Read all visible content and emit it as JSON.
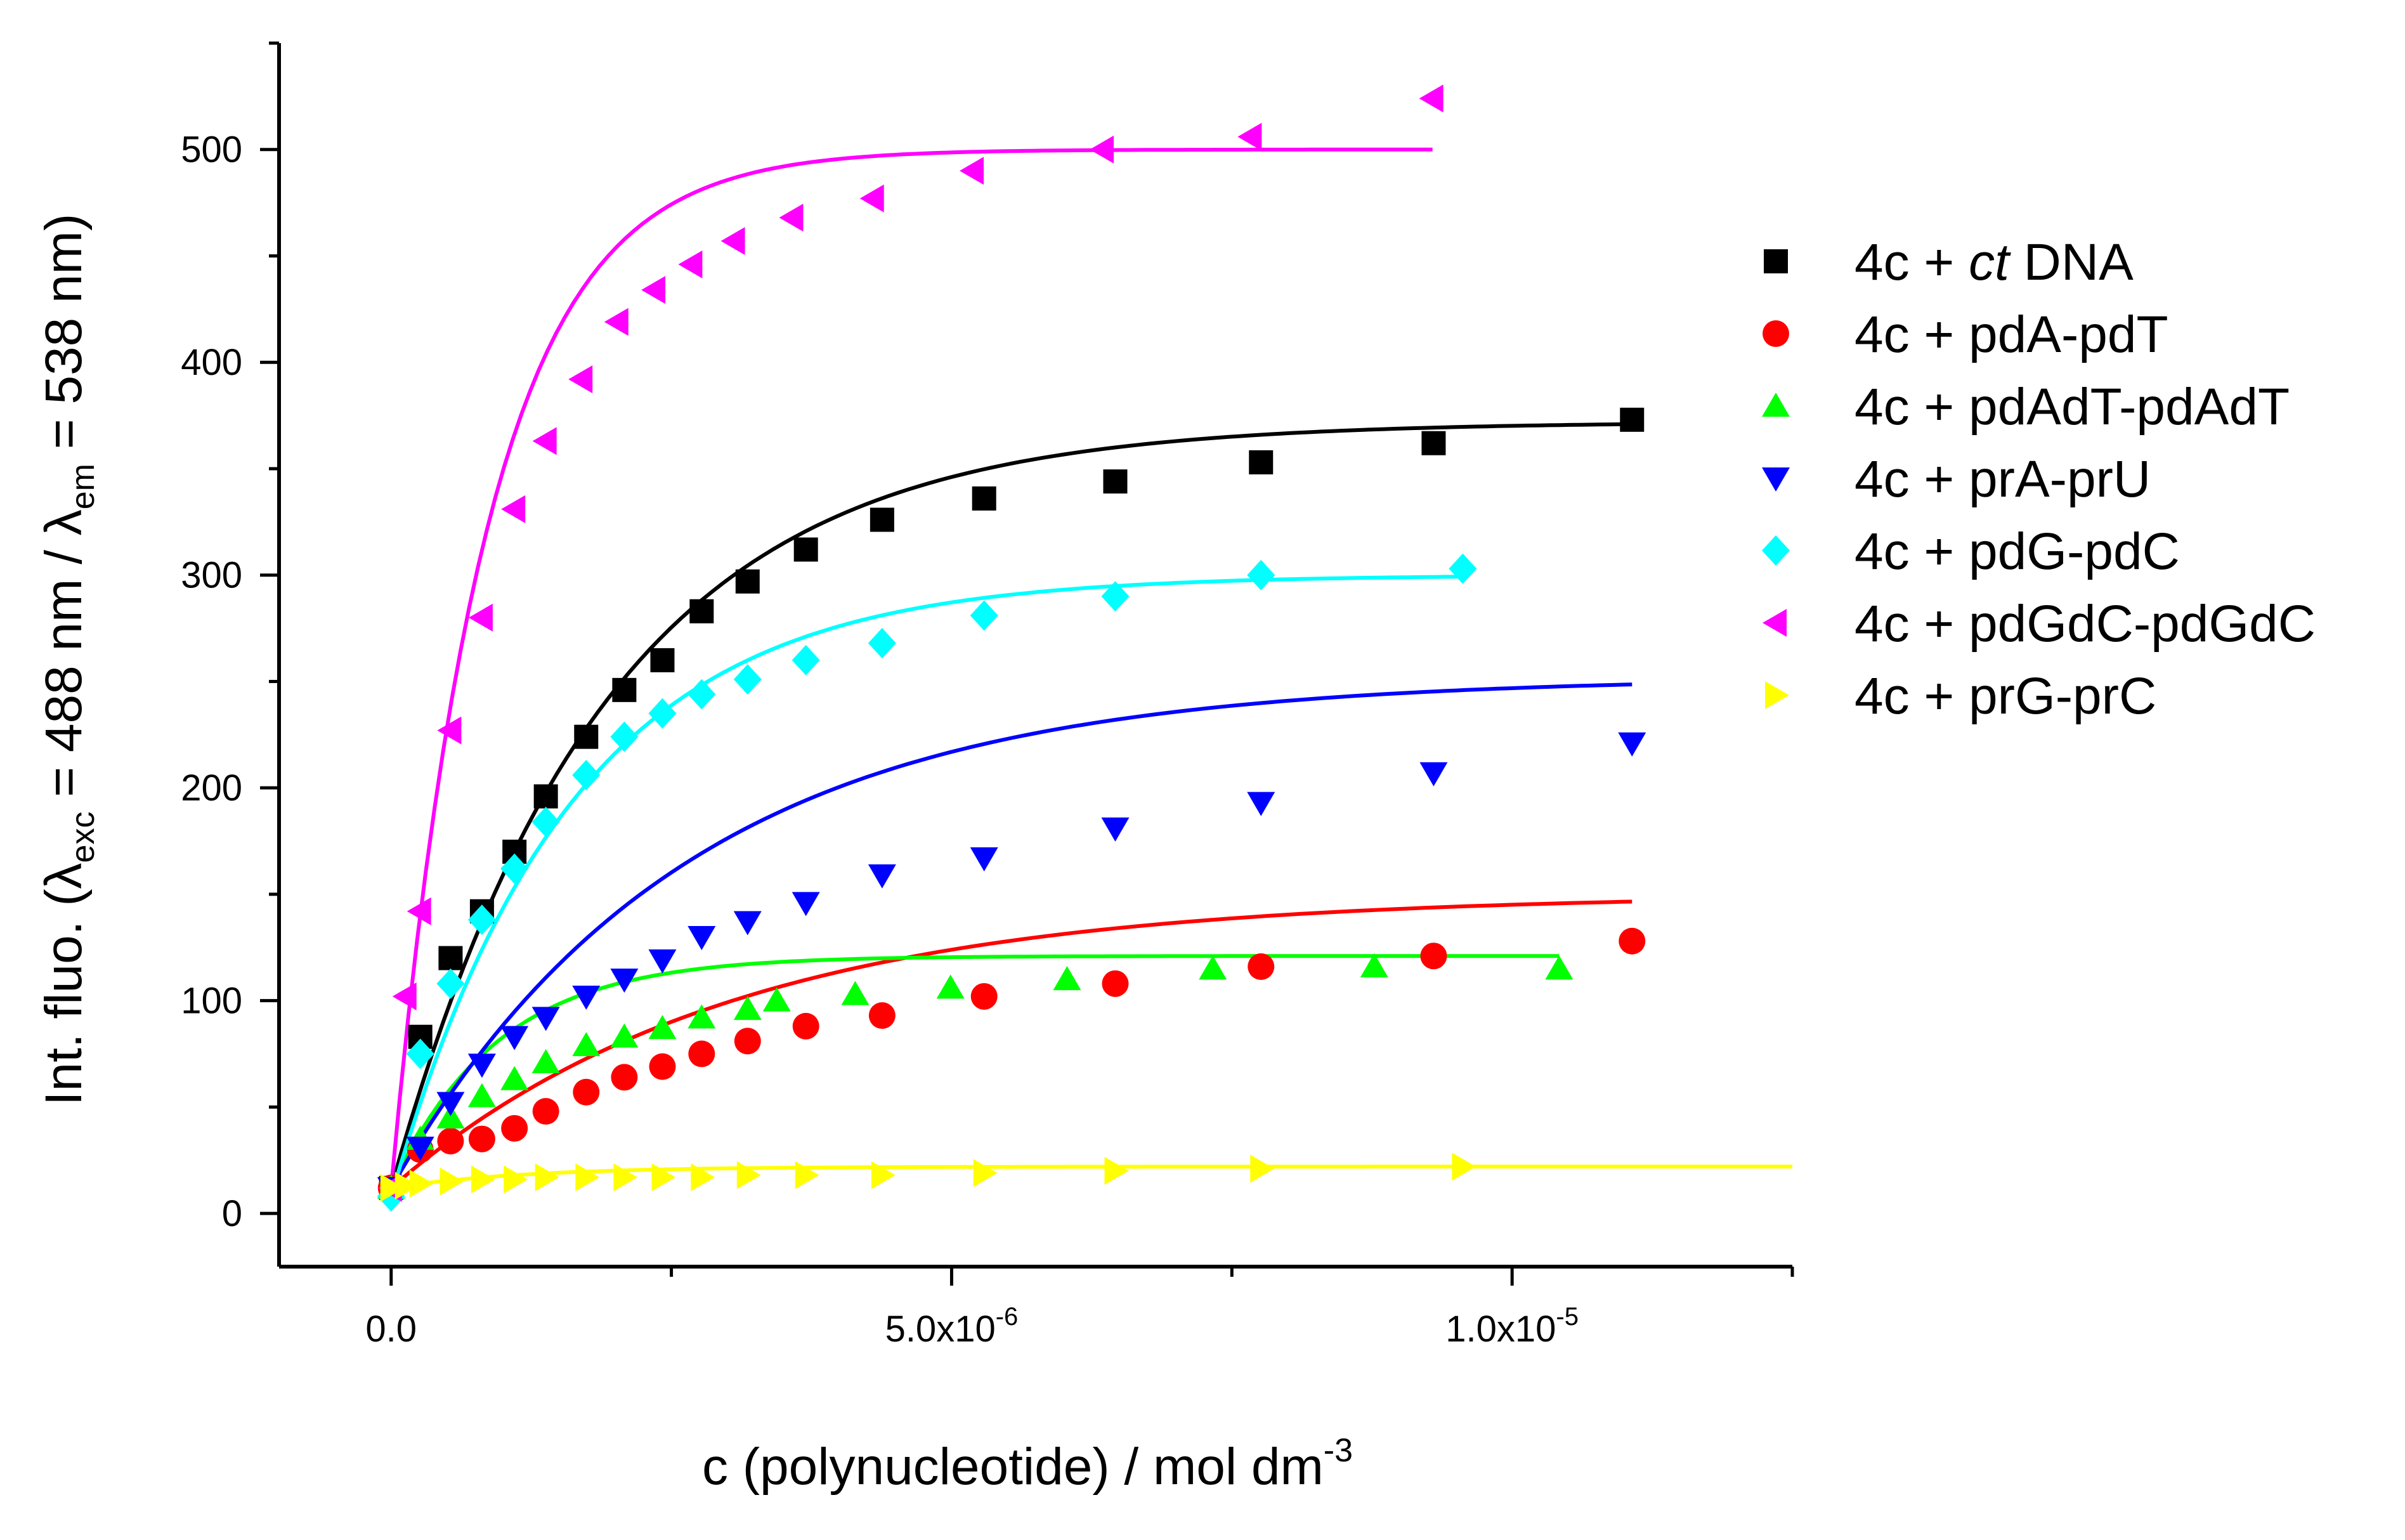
{
  "chart_data": {
    "type": "scatter",
    "xlabel": "c (polynucleotide) / mol dm",
    "xlabel_sup": "-3",
    "ylabel_prefix": "Int. fluo. (λ",
    "ylabel_sub1": "exc",
    "ylabel_mid": " = 488 nm / λ",
    "ylabel_sub2": "em",
    "ylabel_suffix": " = 538 nm)",
    "xlim": [
      -1e-06,
      1.25e-05
    ],
    "ylim": [
      -25,
      550
    ],
    "x_ticks": [
      {
        "value": 0,
        "mantissa": "0.0",
        "exp": ""
      },
      {
        "value": 5e-06,
        "mantissa": "5.0x10",
        "exp": "-6"
      },
      {
        "value": 1e-05,
        "mantissa": "1.0x10",
        "exp": "-5"
      }
    ],
    "y_ticks": [
      0,
      100,
      200,
      300,
      400,
      500
    ],
    "legend_position": "top-right",
    "series": [
      {
        "name": "4c + ct DNA",
        "label_parts": [
          "4c + ",
          "ct",
          " DNA"
        ],
        "color": "#000000",
        "marker": "square",
        "x": [
          0,
          2.6e-07,
          5.3e-07,
          8.1e-07,
          1.1e-06,
          1.38e-06,
          1.74e-06,
          2.08e-06,
          2.42e-06,
          2.77e-06,
          3.18e-06,
          3.7e-06,
          4.38e-06,
          5.29e-06,
          6.46e-06,
          7.76e-06,
          9.3e-06,
          1.107e-05
        ],
        "values": [
          12,
          83,
          120,
          142,
          170,
          196,
          224,
          246,
          260,
          283,
          297,
          312,
          326,
          336,
          344,
          353,
          362,
          373
        ],
        "fit_x": [
          0,
          1.107e-05
        ],
        "fit_a": 372,
        "fit_k": 1.9e-06
      },
      {
        "name": "4c + pdA-pdT",
        "label_parts": [
          "4c + pdA-pdT"
        ],
        "color": "#ff0000",
        "marker": "circle",
        "x": [
          0,
          2.6e-07,
          5.3e-07,
          8.1e-07,
          1.1e-06,
          1.38e-06,
          1.74e-06,
          2.08e-06,
          2.42e-06,
          2.77e-06,
          3.18e-06,
          3.7e-06,
          4.38e-06,
          5.29e-06,
          6.46e-06,
          7.76e-06,
          9.3e-06,
          1.107e-05
        ],
        "values": [
          12,
          30,
          34,
          35,
          40,
          48,
          57,
          64,
          69,
          75,
          81,
          88,
          93,
          102,
          108,
          116,
          121,
          128
        ],
        "fit_x": [
          0,
          1.107e-05
        ],
        "fit_a": 150,
        "fit_k": 3e-06
      },
      {
        "name": "4c + pdAdT-pdAdT",
        "label_parts": [
          "4c + pdAdT-pdAdT"
        ],
        "color": "#00ff00",
        "marker": "triangle-up",
        "x": [
          0,
          2.6e-07,
          5.3e-07,
          8.1e-07,
          1.1e-06,
          1.38e-06,
          1.74e-06,
          2.08e-06,
          2.42e-06,
          2.77e-06,
          3.18e-06,
          3.44e-06,
          4.14e-06,
          4.99e-06,
          6.03e-06,
          7.33e-06,
          8.77e-06,
          1.042e-05
        ],
        "values": [
          12,
          35,
          45,
          55,
          63,
          71,
          79,
          83,
          87,
          92,
          96,
          100,
          103,
          106,
          110,
          115,
          116,
          115
        ],
        "fit_x": [
          0,
          1.042e-05
        ],
        "fit_a": 121,
        "fit_k": 9.5e-07
      },
      {
        "name": "4c + prA-prU",
        "label_parts": [
          "4c + prA-prU"
        ],
        "color": "#0000ff",
        "marker": "triangle-down",
        "x": [
          0,
          2.6e-07,
          5.3e-07,
          8.1e-07,
          1.1e-06,
          1.38e-06,
          1.74e-06,
          2.08e-06,
          2.42e-06,
          2.77e-06,
          3.18e-06,
          3.7e-06,
          4.38e-06,
          5.29e-06,
          6.46e-06,
          7.76e-06,
          9.3e-06,
          1.107e-05
        ],
        "values": [
          12,
          31,
          52,
          70,
          83,
          92,
          102,
          110,
          119,
          130,
          137,
          146,
          159,
          167,
          181,
          193,
          207,
          221
        ],
        "fit_x": [
          0,
          1.107e-05
        ],
        "fit_a": 252,
        "fit_k": 2.6e-06
      },
      {
        "name": "4c + pdG-pdC",
        "label_parts": [
          "4c + pdG-pdC"
        ],
        "color": "#00ffff",
        "marker": "diamond",
        "x": [
          0,
          2.6e-07,
          5.3e-07,
          8.1e-07,
          1.1e-06,
          1.38e-06,
          1.74e-06,
          2.08e-06,
          2.42e-06,
          2.77e-06,
          3.18e-06,
          3.7e-06,
          4.38e-06,
          5.29e-06,
          6.46e-06,
          7.76e-06,
          9.56e-06
        ],
        "values": [
          8,
          75,
          108,
          138,
          162,
          184,
          206,
          224,
          235,
          244,
          251,
          260,
          268,
          281,
          290,
          300,
          303
        ],
        "fit_x": [
          0,
          9.56e-06
        ],
        "fit_a": 300,
        "fit_k": 1.6e-06
      },
      {
        "name": "4c + pdGdC-pdGdC",
        "label_parts": [
          "4c + pdGdC-pdGdC"
        ],
        "color": "#ff00ff",
        "marker": "triangle-left",
        "x": [
          0,
          1.3e-07,
          2.6e-07,
          5.3e-07,
          8.1e-07,
          1.1e-06,
          1.38e-06,
          1.7e-06,
          2.02e-06,
          2.35e-06,
          2.68e-06,
          3.06e-06,
          3.58e-06,
          4.3e-06,
          5.19e-06,
          6.35e-06,
          7.67e-06,
          9.29e-06
        ],
        "values": [
          12,
          102,
          142,
          227,
          280,
          331,
          363,
          392,
          419,
          434,
          446,
          457,
          468,
          477,
          490,
          500,
          506,
          524
        ],
        "fit_x": [
          0,
          9.29e-06
        ],
        "fit_a": 500,
        "fit_k": 8.5e-07
      },
      {
        "name": "4c + prG-prC",
        "label_parts": [
          "4c + prG-prC"
        ],
        "color": "#ffff00",
        "marker": "triangle-right",
        "x": [
          0,
          1.3e-07,
          2.6e-07,
          5.3e-07,
          8.1e-07,
          1.1e-06,
          1.38e-06,
          1.74e-06,
          2.08e-06,
          2.42e-06,
          2.77e-06,
          3.18e-06,
          3.7e-06,
          4.38e-06,
          5.29e-06,
          6.46e-06,
          7.76e-06,
          9.56e-06
        ],
        "values": [
          12,
          13,
          14,
          15,
          16,
          16,
          17,
          17,
          17,
          17,
          17,
          18,
          18,
          18,
          19,
          20,
          21,
          22
        ],
        "fit_x": [
          0,
          1.25e-05
        ],
        "fit_a": 22,
        "fit_k": 1.2e-06
      }
    ]
  }
}
